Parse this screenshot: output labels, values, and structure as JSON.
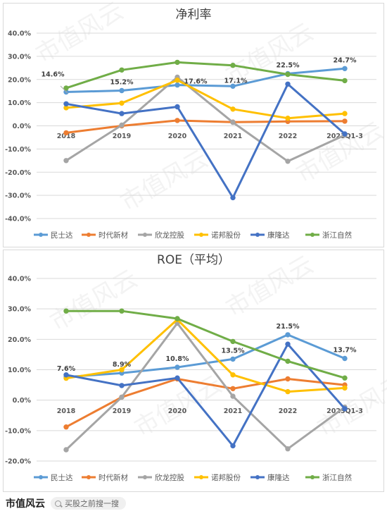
{
  "chart_data": [
    {
      "type": "line",
      "title": "净利率",
      "categories": [
        "2018",
        "2019",
        "2020",
        "2021",
        "2022",
        "2023Q1-3"
      ],
      "y_ticks": [
        "-40.0%",
        "-30.0%",
        "-20.0%",
        "-10.0%",
        "0.0%",
        "10.0%",
        "20.0%",
        "30.0%",
        "40.0%"
      ],
      "ylim": [
        -40,
        40
      ],
      "grid": true,
      "legend": "bottom",
      "series": [
        {
          "name": "民士达",
          "color": "#5b9bd5",
          "values": [
            14.6,
            15.2,
            17.6,
            17.1,
            22.5,
            24.7
          ]
        },
        {
          "name": "时代新材",
          "color": "#ed7d31",
          "values": [
            -3.0,
            0.0,
            2.3,
            1.6,
            1.9,
            2.0
          ]
        },
        {
          "name": "欣龙控股",
          "color": "#a5a5a5",
          "values": [
            -15.0,
            0.3,
            21.0,
            1.5,
            -15.3,
            -4.0
          ]
        },
        {
          "name": "诺邦股份",
          "color": "#ffc000",
          "values": [
            7.8,
            9.8,
            19.7,
            7.2,
            3.3,
            5.3
          ]
        },
        {
          "name": "康隆达",
          "color": "#4472c4",
          "values": [
            9.5,
            5.3,
            8.2,
            -31.0,
            18.0,
            -3.5
          ]
        },
        {
          "name": "浙江自然",
          "color": "#70ad47",
          "values": [
            16.3,
            24.1,
            27.4,
            26.1,
            22.2,
            19.5
          ]
        }
      ],
      "data_labels": [
        {
          "series": 0,
          "index": 0,
          "text": "14.6%"
        },
        {
          "series": 0,
          "index": 1,
          "text": "15.2%"
        },
        {
          "series": 0,
          "index": 2,
          "text": "17.6%"
        },
        {
          "series": 0,
          "index": 3,
          "text": "17.1%"
        },
        {
          "series": 0,
          "index": 4,
          "text": "22.5%"
        },
        {
          "series": 0,
          "index": 5,
          "text": "24.7%"
        }
      ]
    },
    {
      "type": "line",
      "title": "ROE（平均）",
      "categories": [
        "2018",
        "2019",
        "2020",
        "2021",
        "2022",
        "2023Q1-3"
      ],
      "y_ticks": [
        "-20.0%",
        "-10.0%",
        "0.0%",
        "10.0%",
        "20.0%",
        "30.0%",
        "40.0%"
      ],
      "ylim": [
        -20,
        40
      ],
      "grid": true,
      "legend": "bottom",
      "series": [
        {
          "name": "民士达",
          "color": "#5b9bd5",
          "values": [
            7.6,
            8.9,
            10.8,
            13.5,
            21.5,
            13.7
          ]
        },
        {
          "name": "时代新材",
          "color": "#ed7d31",
          "values": [
            -8.8,
            1.0,
            7.0,
            3.8,
            7.0,
            5.0
          ]
        },
        {
          "name": "欣龙控股",
          "color": "#a5a5a5",
          "values": [
            -16.3,
            1.0,
            25.3,
            1.3,
            -16.0,
            -2.3
          ]
        },
        {
          "name": "诺邦股份",
          "color": "#ffc000",
          "values": [
            7.2,
            10.0,
            26.5,
            8.3,
            2.8,
            4.0
          ]
        },
        {
          "name": "康隆达",
          "color": "#4472c4",
          "values": [
            8.3,
            4.8,
            7.3,
            -15.0,
            18.4,
            -2.8
          ]
        },
        {
          "name": "浙江自然",
          "color": "#70ad47",
          "values": [
            29.3,
            29.3,
            26.8,
            19.3,
            12.8,
            7.3
          ]
        }
      ],
      "data_labels": [
        {
          "series": 0,
          "index": 0,
          "text": "7.6%"
        },
        {
          "series": 0,
          "index": 1,
          "text": "8.9%"
        },
        {
          "series": 0,
          "index": 2,
          "text": "10.8%"
        },
        {
          "series": 0,
          "index": 3,
          "text": "13.5%"
        },
        {
          "series": 0,
          "index": 4,
          "text": "21.5%"
        },
        {
          "series": 0,
          "index": 5,
          "text": "13.7%"
        }
      ]
    }
  ],
  "footer": {
    "brand": "市值风云",
    "search_placeholder": "买股之前搜一搜"
  }
}
